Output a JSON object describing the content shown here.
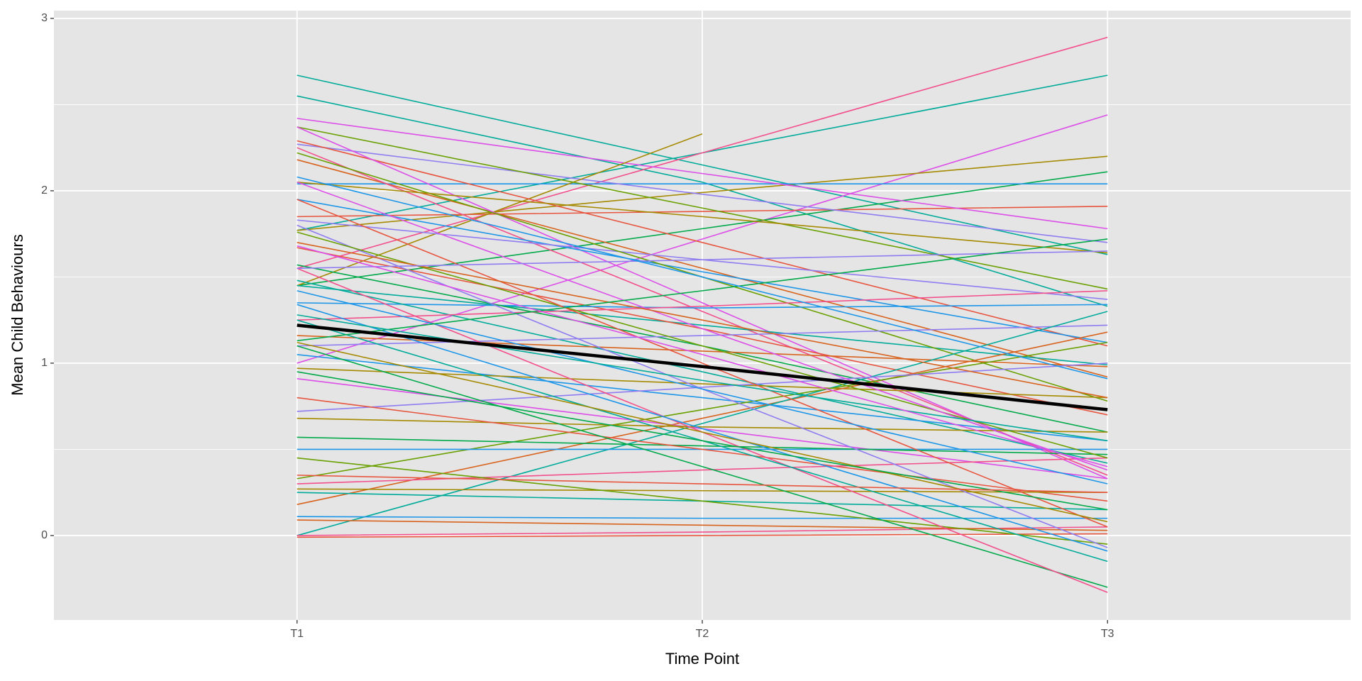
{
  "chart_data": {
    "type": "line",
    "x_label": "Time Point",
    "y_label": "Mean Child Behaviours",
    "categories": [
      "T1",
      "T2",
      "T3"
    ],
    "ylim": [
      -0.49,
      3.045
    ],
    "yticks": [
      0,
      1,
      2,
      3
    ],
    "y_minor_grid": [
      0.5,
      1.5,
      2.5
    ],
    "grid": true,
    "line_width": 1.6,
    "series": [
      {
        "color": "#00ab9a",
        "values": [
          2.67,
          2.15,
          1.63
        ]
      },
      {
        "color": "#00ab9a",
        "values": [
          2.55,
          2.05,
          1.33
        ]
      },
      {
        "color": "#00ab9a",
        "values": [
          1.77,
          2.22,
          2.67
        ]
      },
      {
        "color": "#f24f8b",
        "values": [
          1.55,
          2.22,
          2.89
        ]
      },
      {
        "color": "#dc4ee8",
        "values": [
          1.0,
          1.72,
          2.44
        ]
      },
      {
        "color": "#a58a00",
        "values": [
          1.77,
          1.99,
          2.2
        ]
      },
      {
        "color": "#00a94a",
        "values": [
          1.45,
          1.78,
          2.11
        ]
      },
      {
        "color": "#1e96e8",
        "values": [
          2.04,
          2.04,
          2.04
        ]
      },
      {
        "color": "#e7553f",
        "values": [
          1.85,
          1.88,
          1.91
        ]
      },
      {
        "color": "#dc4ee8",
        "values": [
          2.42,
          2.1,
          1.78
        ]
      },
      {
        "color": "#8f7cf0",
        "values": [
          2.27,
          1.98,
          1.7
        ]
      },
      {
        "color": "#a58a00",
        "values": [
          1.45,
          2.33,
          null
        ]
      },
      {
        "color": "#6aa000",
        "values": [
          2.37,
          1.9,
          1.43
        ]
      },
      {
        "color": "#e7553f",
        "values": [
          2.29,
          1.7,
          1.1
        ]
      },
      {
        "color": "#d8631e",
        "values": [
          2.18,
          1.55,
          0.92
        ]
      },
      {
        "color": "#f24f8b",
        "values": [
          2.25,
          1.3,
          0.35
        ]
      },
      {
        "color": "#dc4ee8",
        "values": [
          2.37,
          1.35,
          0.33
        ]
      },
      {
        "color": "#00ab9a",
        "values": [
          1.45,
          1.22,
          0.99
        ]
      },
      {
        "color": "#1e96e8",
        "values": [
          1.95,
          1.53,
          1.12
        ]
      },
      {
        "color": "#8f7cf0",
        "values": [
          1.83,
          1.6,
          1.37
        ]
      },
      {
        "color": "#6aa000",
        "values": [
          2.22,
          1.5,
          0.78
        ]
      },
      {
        "color": "#a58a00",
        "values": [
          2.05,
          1.85,
          1.64
        ]
      },
      {
        "color": "#e7553f",
        "values": [
          1.67,
          1.2,
          0.7
        ]
      },
      {
        "color": "#1e96e8",
        "values": [
          1.35,
          1.32,
          1.34
        ]
      },
      {
        "color": "#00a94a",
        "values": [
          1.57,
          1.1,
          0.6
        ]
      },
      {
        "color": "#00ab9a",
        "values": [
          1.48,
          0.95,
          0.42
        ]
      },
      {
        "color": "#d8631e",
        "values": [
          1.16,
          1.07,
          0.98
        ]
      },
      {
        "color": "#f24f8b",
        "values": [
          1.25,
          1.33,
          1.42
        ]
      },
      {
        "color": "#8f7cf0",
        "values": [
          1.1,
          1.16,
          1.22
        ]
      },
      {
        "color": "#1e96e8",
        "values": [
          1.05,
          0.8,
          0.55
        ]
      },
      {
        "color": "#a58a00",
        "values": [
          0.97,
          0.88,
          0.8
        ]
      },
      {
        "color": "#d8631e",
        "values": [
          0.18,
          0.68,
          1.18
        ]
      },
      {
        "color": "#00ab9a",
        "values": [
          0.0,
          0.65,
          1.3
        ]
      },
      {
        "color": "#6aa000",
        "values": [
          0.33,
          0.73,
          1.12
        ]
      },
      {
        "color": "#8f7cf0",
        "values": [
          0.72,
          0.86,
          1.0
        ]
      },
      {
        "color": "#dc4ee8",
        "values": [
          0.91,
          0.62,
          0.33
        ]
      },
      {
        "color": "#1e96e8",
        "values": [
          0.5,
          0.5,
          0.5
        ]
      },
      {
        "color": "#00a94a",
        "values": [
          0.57,
          0.52,
          0.47
        ]
      },
      {
        "color": "#a58a00",
        "values": [
          0.68,
          0.63,
          0.6
        ]
      },
      {
        "color": "#e7553f",
        "values": [
          0.8,
          0.5,
          0.2
        ]
      },
      {
        "color": "#00ab9a",
        "values": [
          0.25,
          0.2,
          0.15
        ]
      },
      {
        "color": "#a58a00",
        "values": [
          0.27,
          0.26,
          0.25
        ]
      },
      {
        "color": "#f24f8b",
        "values": [
          0.3,
          0.38,
          0.45
        ]
      },
      {
        "color": "#1e96e8",
        "values": [
          0.11,
          0.1,
          0.1
        ]
      },
      {
        "color": "#f24f8b",
        "values": [
          0.0,
          0.02,
          0.05
        ]
      },
      {
        "color": "#e7553f",
        "values": [
          -0.01,
          0.0,
          0.01
        ]
      },
      {
        "color": "#d8631e",
        "values": [
          0.09,
          0.06,
          0.03
        ]
      },
      {
        "color": "#6aa000",
        "values": [
          0.45,
          0.2,
          -0.05
        ]
      },
      {
        "color": "#00a94a",
        "values": [
          1.1,
          0.4,
          -0.3
        ]
      },
      {
        "color": "#f24f8b",
        "values": [
          1.55,
          0.6,
          -0.33
        ]
      },
      {
        "color": "#1e96e8",
        "values": [
          1.34,
          0.62,
          -0.09
        ]
      },
      {
        "color": "#8f7cf0",
        "values": [
          1.8,
          0.85,
          -0.07
        ]
      },
      {
        "color": "#00ab9a",
        "values": [
          1.25,
          0.55,
          -0.15
        ]
      },
      {
        "color": "#6aa000",
        "values": [
          1.76,
          1.1,
          0.45
        ]
      },
      {
        "color": "#e7553f",
        "values": [
          1.95,
          1.0,
          0.05
        ]
      },
      {
        "color": "#dc4ee8",
        "values": [
          2.05,
          1.2,
          0.38
        ]
      },
      {
        "color": "#1e96e8",
        "values": [
          1.42,
          0.85,
          0.3
        ]
      },
      {
        "color": "#a58a00",
        "values": [
          1.12,
          0.6,
          0.08
        ]
      },
      {
        "color": "#00a94a",
        "values": [
          0.95,
          0.55,
          0.15
        ]
      },
      {
        "color": "#d8631e",
        "values": [
          1.7,
          1.25,
          0.8
        ]
      },
      {
        "color": "#8f7cf0",
        "values": [
          1.55,
          1.6,
          1.65
        ]
      },
      {
        "color": "#00a94a",
        "values": [
          1.13,
          1.42,
          1.72
        ]
      },
      {
        "color": "#00ab9a",
        "values": [
          1.28,
          0.9,
          0.55
        ]
      },
      {
        "color": "#e7553f",
        "values": [
          0.35,
          0.3,
          0.25
        ]
      },
      {
        "color": "#dc4ee8",
        "values": [
          1.68,
          1.05,
          0.4
        ]
      },
      {
        "color": "#1e96e8",
        "values": [
          2.08,
          1.5,
          0.91
        ]
      },
      {
        "color": "#000000",
        "line_width": 4.5,
        "values": [
          1.22,
          0.98,
          0.73
        ]
      }
    ]
  }
}
